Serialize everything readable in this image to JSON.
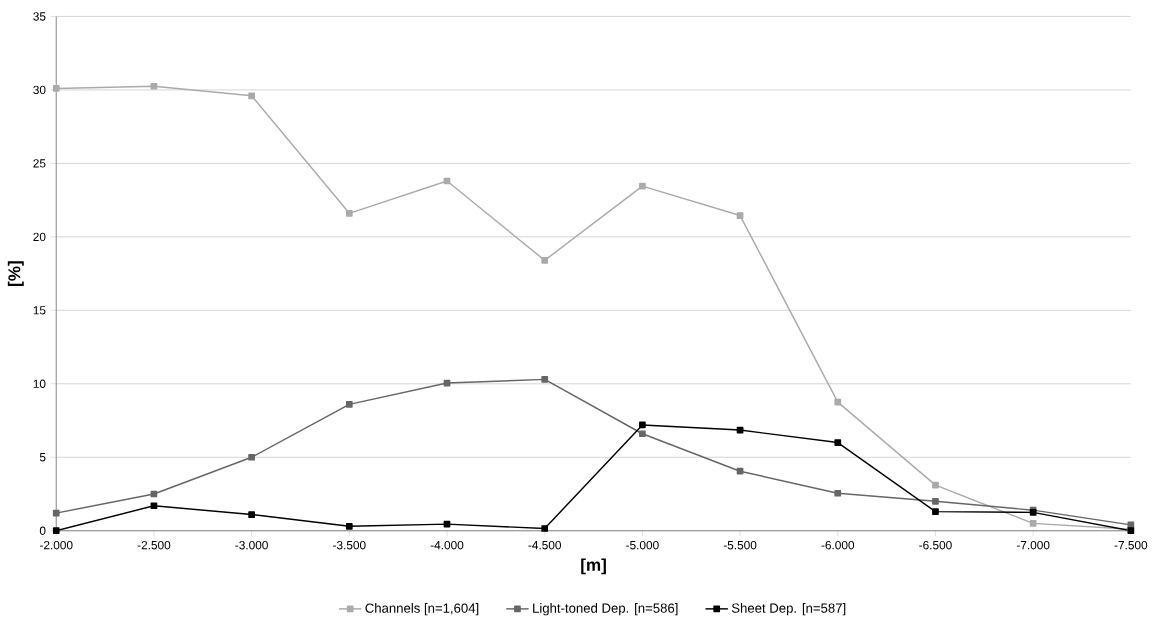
{
  "chart_data": {
    "type": "line",
    "xlabel": "[m]",
    "ylabel": "[%]",
    "categories": [
      "-2.000",
      "-2.500",
      "-3.000",
      "-3.500",
      "-4.000",
      "-4.500",
      "-5.000",
      "-5.500",
      "-6.000",
      "-6.500",
      "-7.000",
      "-7.500"
    ],
    "series": [
      {
        "name": "Channels [n=1,604]",
        "color": "#aaaaaa",
        "values": [
          30.1,
          30.25,
          29.6,
          21.6,
          23.8,
          18.4,
          23.45,
          21.45,
          8.75,
          3.1,
          0.5,
          0.1
        ]
      },
      {
        "name": "Light-toned Dep. [n=586]",
        "color": "#666666",
        "values": [
          1.2,
          2.5,
          5.0,
          8.6,
          10.05,
          10.3,
          6.6,
          4.05,
          2.55,
          2.0,
          1.4,
          0.4
        ]
      },
      {
        "name": "Sheet Dep. [n=587]",
        "color": "#000000",
        "values": [
          0.0,
          1.7,
          1.1,
          0.3,
          0.45,
          0.15,
          7.2,
          6.85,
          6.0,
          1.3,
          1.25,
          0.0
        ]
      }
    ],
    "ylim": [
      0,
      35
    ],
    "yticks": [
      0,
      5,
      10,
      15,
      20,
      25,
      30,
      35
    ],
    "grid": "y",
    "legend": "bottom",
    "marker": "square",
    "line_style": "solid"
  }
}
